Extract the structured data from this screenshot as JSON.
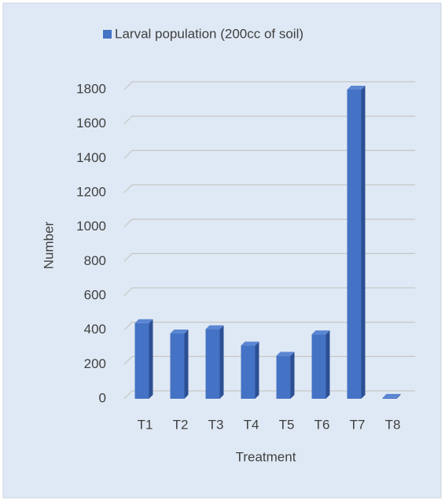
{
  "chart_data": {
    "type": "bar",
    "series": [
      {
        "name": "Larval population (200cc of soil)",
        "color": "#4472c4",
        "values": [
          440,
          380,
          405,
          310,
          250,
          375,
          1800,
          5
        ]
      }
    ],
    "categories": [
      "T1",
      "T2",
      "T3",
      "T4",
      "T5",
      "T6",
      "T7",
      "T8"
    ],
    "xlabel": "Treatment",
    "ylabel": "Number",
    "ylim": [
      0,
      1800
    ],
    "yticks": [
      0,
      200,
      400,
      600,
      800,
      1000,
      1200,
      1400,
      1600,
      1800
    ],
    "grid": true,
    "legend": "top"
  }
}
